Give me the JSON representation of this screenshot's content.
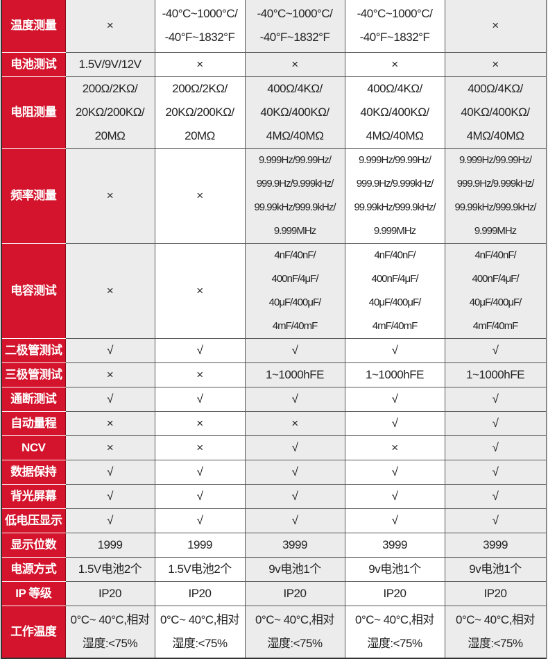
{
  "colors": {
    "label_bg": "#d3142c",
    "shade": "#ececec"
  },
  "rows": [
    {
      "label": "温度测量",
      "cells": [
        [
          "×"
        ],
        [
          "-40°C~1000°C/",
          "-40°F~1832°F"
        ],
        [
          "-40°C~1000°C/",
          "-40°F~1832°F"
        ],
        [
          "-40°C~1000°C/",
          "-40°F~1832°F"
        ],
        [
          "×"
        ]
      ]
    },
    {
      "label": "电池测试",
      "cells": [
        [
          "1.5V/9V/12V"
        ],
        [
          "×"
        ],
        [
          "×"
        ],
        [
          "×"
        ],
        [
          "×"
        ]
      ]
    },
    {
      "label": "电阻测量",
      "cells": [
        [
          "200Ω/2KΩ/",
          "20KΩ/200KΩ/",
          "20MΩ"
        ],
        [
          "200Ω/2KΩ/",
          "20KΩ/200KΩ/",
          "20MΩ"
        ],
        [
          "400Ω/4KΩ/",
          "40KΩ/400KΩ/",
          "4MΩ/40MΩ"
        ],
        [
          "400Ω/4KΩ/",
          "40KΩ/400KΩ/",
          "4MΩ/40MΩ"
        ],
        [
          "400Ω/4KΩ/",
          "40KΩ/400KΩ/",
          "4MΩ/40MΩ"
        ]
      ]
    },
    {
      "label": "频率测量",
      "cells": [
        [
          "×"
        ],
        [
          "×"
        ],
        [
          "9.999Hz/99.99Hz/",
          "999.9Hz/9.999kHz/",
          "99.99kHz/999.9kHz/",
          "9.999MHz"
        ],
        [
          "9.999Hz/99.99Hz/",
          "999.9Hz/9.999kHz/",
          "99.99kHz/999.9kHz/",
          "9.999MHz"
        ],
        [
          "9.999Hz/99.99Hz/",
          "999.9Hz/9.999kHz/",
          "99.99kHz/999.9kHz/",
          "9.999MHz"
        ]
      ]
    },
    {
      "label": "电容测试",
      "cells": [
        [
          "×"
        ],
        [
          "×"
        ],
        [
          "4nF/40nF/",
          "400nF/4μF/",
          "40μF/400μF/",
          "4mF/40mF"
        ],
        [
          "4nF/40nF/",
          "400nF/4μF/",
          "40μF/400μF/",
          "4mF/40mF"
        ],
        [
          "4nF/40nF/",
          "400nF/4μF/",
          "40μF/400μF/",
          "4mF/40mF"
        ]
      ]
    },
    {
      "label": "二极管测试",
      "cells": [
        [
          "√"
        ],
        [
          "√"
        ],
        [
          "√"
        ],
        [
          "√"
        ],
        [
          "√"
        ]
      ]
    },
    {
      "label": "三极管测试",
      "cells": [
        [
          "×"
        ],
        [
          "×"
        ],
        [
          "1~1000hFE"
        ],
        [
          "1~1000hFE"
        ],
        [
          "1~1000hFE"
        ]
      ]
    },
    {
      "label": "通断测试",
      "cells": [
        [
          "√"
        ],
        [
          "√"
        ],
        [
          "√"
        ],
        [
          "√"
        ],
        [
          "√"
        ]
      ]
    },
    {
      "label": "自动量程",
      "cells": [
        [
          "×"
        ],
        [
          "×"
        ],
        [
          "×"
        ],
        [
          "√"
        ],
        [
          "√"
        ]
      ]
    },
    {
      "label": "NCV",
      "cells": [
        [
          "×"
        ],
        [
          "×"
        ],
        [
          "√"
        ],
        [
          "×"
        ],
        [
          "√"
        ]
      ]
    },
    {
      "label": "数据保持",
      "cells": [
        [
          "√"
        ],
        [
          "√"
        ],
        [
          "√"
        ],
        [
          "√"
        ],
        [
          "√"
        ]
      ]
    },
    {
      "label": "背光屏幕",
      "cells": [
        [
          "√"
        ],
        [
          "√"
        ],
        [
          "√"
        ],
        [
          "√"
        ],
        [
          "√"
        ]
      ]
    },
    {
      "label": "低电压显示",
      "cells": [
        [
          "√"
        ],
        [
          "√"
        ],
        [
          "√"
        ],
        [
          "√"
        ],
        [
          "√"
        ]
      ]
    },
    {
      "label": "显示位数",
      "cells": [
        [
          "1999"
        ],
        [
          "1999"
        ],
        [
          "3999"
        ],
        [
          "3999"
        ],
        [
          "3999"
        ]
      ]
    },
    {
      "label": "电源方式",
      "cells": [
        [
          "1.5V电池2个"
        ],
        [
          "1.5V电池2个"
        ],
        [
          "9v电池1个"
        ],
        [
          "9v电池1个"
        ],
        [
          "9v电池1个"
        ]
      ]
    },
    {
      "label": "IP 等级",
      "cells": [
        [
          "IP20"
        ],
        [
          "IP20"
        ],
        [
          "IP20"
        ],
        [
          "IP20"
        ],
        [
          "IP20"
        ]
      ]
    },
    {
      "label": "工作温度",
      "cells": [
        [
          "0°C~ 40°C,相对",
          "湿度:<75%"
        ],
        [
          "0°C~ 40°C,相对",
          "湿度:<75%"
        ],
        [
          "0°C~ 40°C,相对",
          "湿度:<75%"
        ],
        [
          "0°C~ 40°C,相对",
          "湿度:<75%"
        ],
        [
          "0°C~ 40°C,相对",
          "湿度:<75%"
        ]
      ]
    }
  ]
}
